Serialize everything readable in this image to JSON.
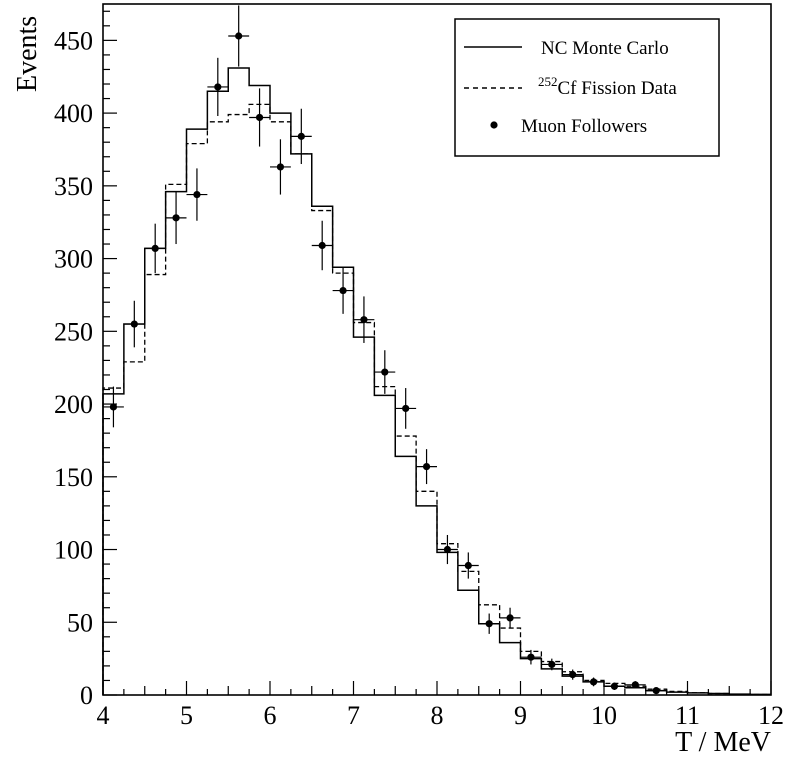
{
  "chart_data": {
    "type": "histogram",
    "xlabel": "T / MeV",
    "ylabel": "Events",
    "xlim": [
      4,
      12
    ],
    "ylim": [
      0,
      475
    ],
    "bin_width": 0.25,
    "bin_edges_start": 4.0,
    "x_ticks": [
      4,
      5,
      6,
      7,
      8,
      9,
      10,
      11,
      12
    ],
    "y_ticks": [
      0,
      50,
      100,
      150,
      200,
      250,
      300,
      350,
      400,
      450
    ],
    "legend": {
      "position": "top-right",
      "entries": [
        {
          "key": "mc",
          "style": "solid-line",
          "label": "NC Monte Carlo"
        },
        {
          "key": "cf",
          "style": "dashed-line",
          "label_sup": "252",
          "label": "Cf Fission Data"
        },
        {
          "key": "muon",
          "style": "point",
          "label": "Muon Followers"
        }
      ]
    },
    "series": [
      {
        "name": "NC Monte Carlo",
        "style": "solid-step",
        "values": [
          207,
          255,
          307,
          346,
          389,
          415,
          431,
          419,
          400,
          372,
          336,
          294,
          246,
          206,
          164,
          130,
          98,
          72,
          49,
          36,
          25,
          18,
          13,
          9,
          6,
          5,
          3,
          2,
          1.5,
          1,
          0.6,
          0.4
        ]
      },
      {
        "name": "252Cf Fission Data",
        "style": "dashed-step",
        "values": [
          211,
          229,
          289,
          351,
          379,
          394,
          399,
          406,
          394,
          372,
          333,
          290,
          256,
          212,
          178,
          140,
          104,
          85,
          62,
          46,
          30,
          23,
          16,
          10,
          8,
          6,
          4,
          2.5,
          1.5,
          1,
          0.6,
          0.3
        ]
      },
      {
        "name": "Muon Followers",
        "style": "points-with-errors",
        "x": [
          4.125,
          4.375,
          4.625,
          4.875,
          5.125,
          5.375,
          5.625,
          5.875,
          6.125,
          6.375,
          6.625,
          6.875,
          7.125,
          7.375,
          7.625,
          7.875,
          8.125,
          8.375,
          8.625,
          8.875,
          9.125,
          9.375,
          9.625,
          9.875,
          10.125,
          10.375,
          10.625
        ],
        "y": [
          198,
          255,
          307,
          328,
          344,
          418,
          453,
          397,
          363,
          384,
          309,
          278,
          258,
          222,
          197,
          157,
          100,
          89,
          49,
          53,
          26,
          21,
          14,
          9,
          6,
          7,
          3
        ],
        "yerr": [
          14,
          16,
          17,
          18,
          18,
          20,
          21,
          20,
          19,
          19,
          17,
          16,
          16,
          15,
          14,
          12,
          10,
          9,
          7,
          7,
          5,
          4,
          3.5,
          3,
          2.5,
          2.5,
          1.5
        ]
      }
    ]
  }
}
